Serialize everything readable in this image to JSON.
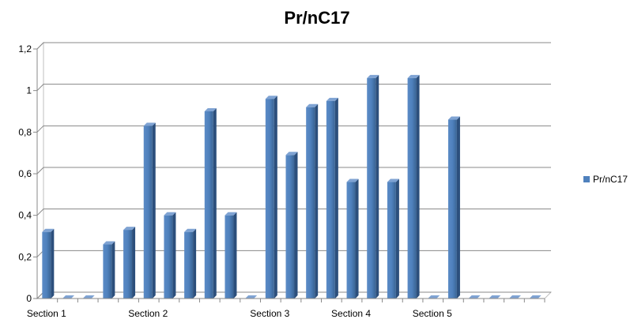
{
  "chart_data": {
    "type": "bar",
    "title": "Pr/nC17",
    "xlabel": "",
    "ylabel": "",
    "ylim": [
      0,
      1.2
    ],
    "yticks": [
      "0",
      "0,2",
      "0,4",
      "0,6",
      "0,8",
      "1",
      "1,2"
    ],
    "grid": true,
    "legend_position": "right",
    "series": [
      {
        "name": "Pr/nC17",
        "color": "#4F81BD",
        "values": [
          0.32,
          0,
          0,
          0.26,
          0.33,
          0.83,
          0.4,
          0.32,
          0.9,
          0.4,
          0,
          0.96,
          0.69,
          0.92,
          0.95,
          0.56,
          1.06,
          0.56,
          1.06,
          0,
          0.86,
          0,
          0,
          0,
          0
        ]
      }
    ],
    "categories": [
      "Section 1",
      "",
      "",
      "",
      "",
      "Section 2",
      "",
      "",
      "",
      "",
      "",
      "Section 3",
      "",
      "",
      "",
      "Section 4",
      "",
      "",
      "",
      "Section 5",
      "",
      "",
      "",
      "",
      ""
    ]
  }
}
